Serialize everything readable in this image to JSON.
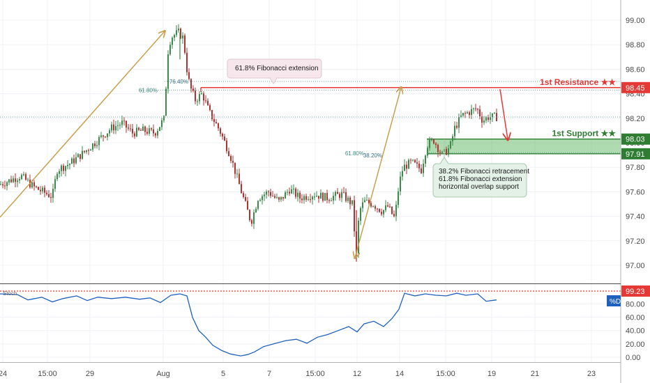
{
  "chart_data": {
    "type": "candlestick",
    "price_axis": {
      "ylim": [
        96.88,
        99.08
      ],
      "ticks": [
        "99.00",
        "98.80",
        "98.60",
        "98.40",
        "98.20",
        "98.00",
        "97.80",
        "97.60",
        "97.40",
        "97.20",
        "97.00"
      ],
      "tick_values": [
        99.0,
        98.8,
        98.6,
        98.4,
        98.2,
        98.0,
        97.8,
        97.6,
        97.4,
        97.2,
        97.0
      ]
    },
    "time_axis": {
      "labels": [
        "24",
        "15:00",
        "29",
        "Aug",
        "5",
        "7",
        "15:00",
        "12",
        "14",
        "15:00",
        "19",
        "21",
        "23"
      ]
    },
    "price_tags": {
      "resistance": {
        "label": "98.45",
        "value": 98.45,
        "color": "#e53935"
      },
      "support_top": {
        "label": "98.03",
        "value": 98.03,
        "color": "#2e7d32"
      },
      "support_bottom": {
        "label": "97.91",
        "value": 97.91,
        "color": "#2e7d32"
      },
      "last_price": {
        "value": 98.21
      }
    },
    "levels": {
      "resistance_label": "1st Resistance ★★",
      "support_label": "1st Support ★★"
    },
    "fib_labels": {
      "f1": "76.40%",
      "f2": "61.80%",
      "f3": "61.80%",
      "f4": "38.20%"
    },
    "annotations": {
      "callout_top": "61.8% Fibonacci extension",
      "callout_bottom_1": "38.2% Fibonacci retracement",
      "callout_bottom_2": "61.8% Fibonacci extension",
      "callout_bottom_3": "horizontal overlap support"
    },
    "price_path": [
      [
        0,
        97.66
      ],
      [
        30,
        97.73
      ],
      [
        48,
        97.64
      ],
      [
        75,
        97.56
      ],
      [
        82,
        97.78
      ],
      [
        100,
        97.83
      ],
      [
        120,
        97.92
      ],
      [
        140,
        98.02
      ],
      [
        160,
        98.12
      ],
      [
        175,
        98.16
      ],
      [
        190,
        98.08
      ],
      [
        205,
        98.1
      ],
      [
        222,
        98.08
      ],
      [
        236,
        98.2
      ],
      [
        240,
        98.72
      ],
      [
        245,
        98.86
      ],
      [
        250,
        98.88
      ],
      [
        256,
        98.9
      ],
      [
        262,
        98.86
      ],
      [
        265,
        98.75
      ],
      [
        269,
        98.55
      ],
      [
        273,
        98.45
      ],
      [
        280,
        98.35
      ],
      [
        290,
        98.4
      ],
      [
        300,
        98.25
      ],
      [
        315,
        98.1
      ],
      [
        330,
        97.9
      ],
      [
        345,
        97.62
      ],
      [
        360,
        97.35
      ],
      [
        370,
        97.55
      ],
      [
        385,
        97.6
      ],
      [
        400,
        97.52
      ],
      [
        415,
        97.62
      ],
      [
        430,
        97.55
      ],
      [
        450,
        97.58
      ],
      [
        470,
        97.55
      ],
      [
        490,
        97.58
      ],
      [
        505,
        97.5
      ],
      [
        511,
        97.08
      ],
      [
        515,
        97.44
      ],
      [
        522,
        97.52
      ],
      [
        535,
        97.5
      ],
      [
        548,
        97.44
      ],
      [
        556,
        97.48
      ],
      [
        566,
        97.38
      ],
      [
        572,
        97.66
      ],
      [
        578,
        97.8
      ],
      [
        590,
        97.84
      ],
      [
        604,
        97.78
      ],
      [
        612,
        97.98
      ],
      [
        622,
        98.02
      ],
      [
        634,
        97.9
      ],
      [
        645,
        97.96
      ],
      [
        652,
        98.12
      ],
      [
        662,
        98.22
      ],
      [
        672,
        98.25
      ],
      [
        684,
        98.28
      ],
      [
        692,
        98.18
      ],
      [
        700,
        98.21
      ],
      [
        712,
        98.21
      ]
    ],
    "stochastic": {
      "label": "Stoch",
      "series_label": "%D",
      "ylim": [
        -3,
        107
      ],
      "ticks": [
        "99.23",
        "80.00",
        "60.00",
        "40.00",
        "20.00",
        "0.00"
      ],
      "tick_values": [
        99.23,
        80,
        60,
        40,
        20,
        0
      ],
      "overbought_level": 99.23,
      "values": [
        [
          0,
          95
        ],
        [
          25,
          94
        ],
        [
          40,
          86
        ],
        [
          60,
          90
        ],
        [
          75,
          83
        ],
        [
          90,
          88
        ],
        [
          110,
          92
        ],
        [
          125,
          85
        ],
        [
          140,
          90
        ],
        [
          160,
          88
        ],
        [
          180,
          90
        ],
        [
          200,
          87
        ],
        [
          215,
          89
        ],
        [
          230,
          82
        ],
        [
          245,
          93
        ],
        [
          258,
          95
        ],
        [
          268,
          92
        ],
        [
          276,
          60
        ],
        [
          285,
          40
        ],
        [
          295,
          30
        ],
        [
          305,
          18
        ],
        [
          318,
          10
        ],
        [
          330,
          5
        ],
        [
          345,
          2
        ],
        [
          355,
          4
        ],
        [
          365,
          8
        ],
        [
          378,
          16
        ],
        [
          392,
          20
        ],
        [
          410,
          25
        ],
        [
          425,
          27
        ],
        [
          440,
          21
        ],
        [
          455,
          30
        ],
        [
          470,
          34
        ],
        [
          485,
          40
        ],
        [
          500,
          46
        ],
        [
          512,
          38
        ],
        [
          522,
          50
        ],
        [
          536,
          54
        ],
        [
          550,
          46
        ],
        [
          562,
          58
        ],
        [
          572,
          72
        ],
        [
          580,
          96
        ],
        [
          595,
          92
        ],
        [
          610,
          95
        ],
        [
          625,
          93
        ],
        [
          640,
          92
        ],
        [
          655,
          96
        ],
        [
          668,
          93
        ],
        [
          685,
          95
        ],
        [
          697,
          84
        ],
        [
          712,
          86
        ]
      ]
    }
  }
}
